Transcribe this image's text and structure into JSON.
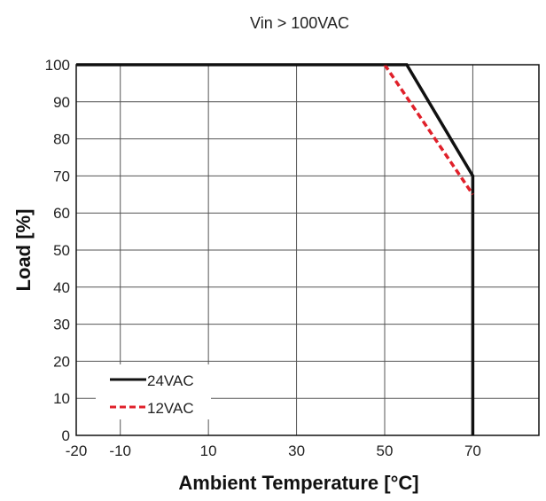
{
  "chart_data": {
    "type": "line",
    "subtitle": "Vin > 100VAC",
    "xlabel": "Ambient Temperature [°C]",
    "ylabel": "Load [%]",
    "xlim": [
      -20,
      85
    ],
    "ylim": [
      0,
      100
    ],
    "x_ticks": [
      -20,
      -10,
      10,
      30,
      50,
      70
    ],
    "x_grid": [
      -20,
      -10,
      10,
      30,
      50,
      70,
      85
    ],
    "y_ticks": [
      0,
      10,
      20,
      30,
      40,
      50,
      60,
      70,
      80,
      90,
      100
    ],
    "grid": true,
    "legend_position": "bottom-left",
    "series": [
      {
        "name": "24VAC",
        "color": "#111111",
        "style": "solid",
        "points": [
          [
            -20,
            100
          ],
          [
            55,
            100
          ],
          [
            70,
            70
          ],
          [
            70,
            0
          ]
        ]
      },
      {
        "name": "12VAC",
        "color": "#e0202a",
        "style": "dashed",
        "points": [
          [
            50,
            100
          ],
          [
            70,
            65
          ]
        ]
      }
    ]
  }
}
